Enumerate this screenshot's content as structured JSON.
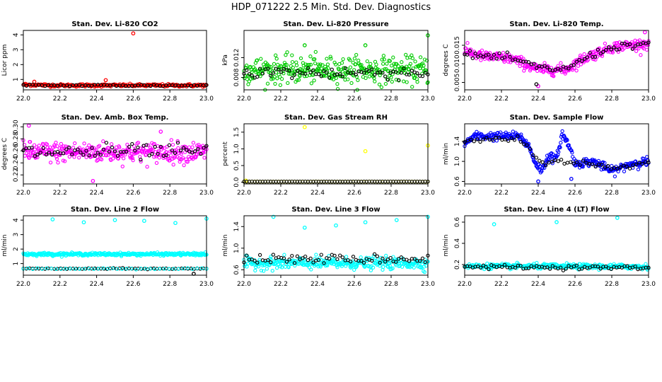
{
  "figure_title": "HDP_071222  2.5 Min. Std. Dev. Diagnostics",
  "colors": {
    "red": "#ff0000",
    "green": "#00cc00",
    "magenta": "#ff00ff",
    "yellow": "#ffff00",
    "blue": "#0000ff",
    "cyan": "#00ffff",
    "black": "#000000"
  },
  "chart_data": [
    {
      "id": "co2",
      "type": "scatter",
      "title": "Stan. Dev. Li-820 CO2",
      "ylabel": "Licor ppm",
      "xlim": [
        22.0,
        23.0
      ],
      "ylim": [
        0.3,
        4.3
      ],
      "xticks": [
        "22.0",
        "22.2",
        "22.4",
        "22.6",
        "22.8",
        "23.0"
      ],
      "yticks": [
        {
          "v": 1,
          "label": "1"
        },
        {
          "v": 2,
          "label": "2"
        },
        {
          "v": 3,
          "label": "3"
        },
        {
          "v": 4,
          "label": "4"
        }
      ],
      "series": [
        {
          "name": "main",
          "color": "#ff0000",
          "n": 250,
          "segments": [
            [
              22.0,
              0.65
            ],
            [
              0.2,
              0.6
            ],
            [
              0.6,
              0.6
            ],
            [
              1.0,
              0.6
            ]
          ],
          "noise": 0.08,
          "outliers": [
            [
              22.6,
              4.1
            ],
            [
              22.45,
              0.95
            ],
            [
              22.06,
              0.85
            ]
          ]
        },
        {
          "name": "ref",
          "color": "#000000",
          "n": 60,
          "segments": [
            [
              22.0,
              0.6
            ],
            [
              1.0,
              0.6
            ]
          ],
          "noise": 0.06,
          "outliers": []
        }
      ]
    },
    {
      "id": "pressure",
      "type": "scatter",
      "title": "Stan. Dev. Li-820 Pressure",
      "ylabel": "kPa",
      "xlim": [
        22.0,
        23.0
      ],
      "ylim": [
        0.0055,
        0.0175
      ],
      "xticks": [
        "22.0",
        "22.2",
        "22.4",
        "22.6",
        "22.8",
        "23.0"
      ],
      "yticks": [
        {
          "v": 0.008,
          "label": "0.008"
        },
        {
          "v": 0.012,
          "label": "0.012"
        }
      ],
      "series": [
        {
          "name": "main",
          "color": "#00cc00",
          "n": 350,
          "segments": [
            [
              22.0,
              0.0095
            ],
            [
              0.5,
              0.0095
            ],
            [
              1.0,
              0.0095
            ]
          ],
          "noise": 0.0022,
          "outliers": [
            [
              22.33,
              0.0145
            ],
            [
              22.66,
              0.0145
            ],
            [
              23.0,
              0.0165
            ]
          ]
        },
        {
          "name": "ref",
          "color": "#000000",
          "n": 70,
          "segments": [
            [
              22.0,
              0.009
            ],
            [
              1.0,
              0.009
            ]
          ],
          "noise": 0.0012,
          "outliers": []
        }
      ]
    },
    {
      "id": "temp",
      "type": "scatter",
      "title": "Stan. Dev. Li-820 Temp.",
      "ylabel": "degrees C",
      "xlim": [
        22.0,
        23.0
      ],
      "ylim": [
        0.003,
        0.019
      ],
      "xticks": [
        "22.0",
        "22.2",
        "22.4",
        "22.6",
        "22.8",
        "23.0"
      ],
      "yticks": [
        {
          "v": 0.005,
          "label": "0.005"
        },
        {
          "v": 0.01,
          "label": "0.010"
        },
        {
          "v": 0.015,
          "label": "0.015"
        }
      ],
      "series": [
        {
          "name": "main",
          "color": "#ff00ff",
          "n": 330,
          "segments": [
            [
              22.0,
              0.0135
            ],
            [
              0.1,
              0.012
            ],
            [
              0.25,
              0.0115
            ],
            [
              0.4,
              0.0085
            ],
            [
              0.55,
              0.0085
            ],
            [
              0.65,
              0.0115
            ],
            [
              0.8,
              0.0145
            ],
            [
              1.0,
              0.0155
            ]
          ],
          "noise": 0.0012,
          "outliers": [
            [
              22.98,
              0.0185
            ],
            [
              22.4,
              0.004
            ]
          ]
        },
        {
          "name": "ref",
          "color": "#000000",
          "n": 70,
          "segments": [
            [
              22.0,
              0.0125
            ],
            [
              0.25,
              0.0115
            ],
            [
              0.4,
              0.009
            ],
            [
              0.55,
              0.0085
            ],
            [
              0.65,
              0.0115
            ],
            [
              0.8,
              0.0145
            ],
            [
              1.0,
              0.0155
            ]
          ],
          "noise": 0.0008,
          "outliers": [
            [
              22.39,
              0.0045
            ]
          ]
        }
      ]
    },
    {
      "id": "ambbox",
      "type": "scatter",
      "title": "Stan. Dev. Amb. Box Temp.",
      "ylabel": "degrees C",
      "xlim": [
        22.0,
        23.0
      ],
      "ylim": [
        0.205,
        0.305
      ],
      "xticks": [
        "22.0",
        "22.2",
        "22.4",
        "22.6",
        "22.8",
        "23.0"
      ],
      "yticks": [
        {
          "v": 0.22,
          "label": "0.22"
        },
        {
          "v": 0.24,
          "label": "0.24"
        },
        {
          "v": 0.26,
          "label": "0.26"
        },
        {
          "v": 0.28,
          "label": "0.28"
        },
        {
          "v": 0.3,
          "label": "0.30"
        }
      ],
      "series": [
        {
          "name": "main",
          "color": "#ff00ff",
          "n": 350,
          "segments": [
            [
              22.0,
              0.258
            ],
            [
              1.0,
              0.258
            ]
          ],
          "noise": 0.014,
          "outliers": [
            [
              22.03,
              0.302
            ],
            [
              22.38,
              0.21
            ],
            [
              22.75,
              0.292
            ]
          ]
        },
        {
          "name": "ref",
          "color": "#000000",
          "n": 65,
          "segments": [
            [
              22.0,
              0.258
            ],
            [
              1.0,
              0.258
            ]
          ],
          "noise": 0.011,
          "outliers": []
        }
      ]
    },
    {
      "id": "rh",
      "type": "scatter",
      "title": "Stan. Dev. Gas Stream RH",
      "ylabel": "percent",
      "xlim": [
        22.0,
        23.0
      ],
      "ylim": [
        -0.05,
        1.75
      ],
      "xticks": [
        "22.0",
        "22.2",
        "22.4",
        "22.6",
        "22.8",
        "23.0"
      ],
      "yticks": [
        {
          "v": 0.0,
          "label": "0.0"
        },
        {
          "v": 0.5,
          "label": "0.5"
        },
        {
          "v": 1.0,
          "label": "1.0"
        },
        {
          "v": 1.5,
          "label": "1.5"
        }
      ],
      "series": [
        {
          "name": "main",
          "color": "#ffff00",
          "n": 70,
          "segments": [
            [
              22.0,
              0.02
            ],
            [
              1.0,
              0.02
            ]
          ],
          "noise": 0.003,
          "outliers": [
            [
              22.33,
              1.65
            ],
            [
              22.66,
              0.93
            ],
            [
              23.0,
              1.1
            ],
            [
              22.01,
              0.05
            ]
          ]
        },
        {
          "name": "ref",
          "color": "#000000",
          "n": 70,
          "segments": [
            [
              22.0,
              0.02
            ],
            [
              1.0,
              0.02
            ]
          ],
          "noise": 0.002,
          "outliers": []
        }
      ]
    },
    {
      "id": "sampleflow",
      "type": "scatter",
      "title": "Stan. Dev. Sample Flow",
      "ylabel": "ml/min",
      "xlim": [
        22.0,
        23.0
      ],
      "ylim": [
        0.55,
        1.75
      ],
      "xticks": [
        "22.0",
        "22.2",
        "22.4",
        "22.6",
        "22.8",
        "23.0"
      ],
      "yticks": [
        {
          "v": 0.6,
          "label": "0.6"
        },
        {
          "v": 1.0,
          "label": "1.0"
        },
        {
          "v": 1.4,
          "label": "1.4"
        }
      ],
      "series": [
        {
          "name": "main",
          "color": "#0000ff",
          "n": 340,
          "segments": [
            [
              22.0,
              1.35
            ],
            [
              0.05,
              1.5
            ],
            [
              0.3,
              1.5
            ],
            [
              0.35,
              1.3
            ],
            [
              0.38,
              1.0
            ],
            [
              0.42,
              0.8
            ],
            [
              0.45,
              1.1
            ],
            [
              0.5,
              1.05
            ],
            [
              0.53,
              1.55
            ],
            [
              0.57,
              1.3
            ],
            [
              0.6,
              0.95
            ],
            [
              0.7,
              1.0
            ],
            [
              0.8,
              0.8
            ],
            [
              0.9,
              0.95
            ],
            [
              1.0,
              1.0
            ]
          ],
          "noise": 0.07,
          "outliers": [
            [
              22.4,
              0.6
            ],
            [
              22.58,
              0.65
            ]
          ]
        },
        {
          "name": "ref",
          "color": "#000000",
          "n": 60,
          "segments": [
            [
              22.0,
              1.4
            ],
            [
              0.3,
              1.45
            ],
            [
              0.4,
              1.0
            ],
            [
              0.6,
              1.0
            ],
            [
              0.8,
              0.85
            ],
            [
              1.0,
              1.0
            ]
          ],
          "noise": 0.05,
          "outliers": []
        }
      ]
    },
    {
      "id": "line2",
      "type": "scatter",
      "title": "Stan. Dev. Line 2 Flow",
      "ylabel": "ml/min",
      "xlim": [
        22.0,
        23.0
      ],
      "ylim": [
        0.2,
        4.3
      ],
      "xticks": [
        "22.0",
        "22.2",
        "22.4",
        "22.6",
        "22.8",
        "23.0"
      ],
      "yticks": [
        {
          "v": 1,
          "label": "1"
        },
        {
          "v": 2,
          "label": "2"
        },
        {
          "v": 3,
          "label": "3"
        },
        {
          "v": 4,
          "label": "4"
        }
      ],
      "series": [
        {
          "name": "main",
          "color": "#00ffff",
          "n": 330,
          "segments": [
            [
              22.0,
              1.65
            ],
            [
              1.0,
              1.65
            ]
          ],
          "noise": 0.08,
          "outliers": [
            [
              22.16,
              4.05
            ],
            [
              22.33,
              3.85
            ],
            [
              22.5,
              4.0
            ],
            [
              22.66,
              3.95
            ],
            [
              22.83,
              3.8
            ],
            [
              23.0,
              4.1
            ]
          ]
        },
        {
          "name": "ref",
          "color": "#000000",
          "n": 60,
          "segments": [
            [
              22.0,
              0.65
            ],
            [
              1.0,
              0.65
            ]
          ],
          "noise": 0.03,
          "outliers": [
            [
              22.93,
              0.3
            ]
          ]
        },
        {
          "name": "cyanlow",
          "color": "#00ffff",
          "n": 40,
          "segments": [
            [
              22.0,
              0.65
            ],
            [
              1.0,
              0.65
            ]
          ],
          "noise": 0.04,
          "outliers": []
        }
      ]
    },
    {
      "id": "line3",
      "type": "scatter",
      "title": "Stan. Dev. Line 3 Flow",
      "ylabel": "ml/min",
      "xlim": [
        22.0,
        23.0
      ],
      "ylim": [
        0.5,
        1.6
      ],
      "xticks": [
        "22.0",
        "22.2",
        "22.4",
        "22.6",
        "22.8",
        "23.0"
      ],
      "yticks": [
        {
          "v": 0.6,
          "label": "0.6"
        },
        {
          "v": 1.0,
          "label": "1.0"
        },
        {
          "v": 1.4,
          "label": "1.4"
        }
      ],
      "series": [
        {
          "name": "main",
          "color": "#00ffff",
          "n": 330,
          "segments": [
            [
              22.0,
              0.72
            ],
            [
              1.0,
              0.72
            ]
          ],
          "noise": 0.09,
          "outliers": [
            [
              22.16,
              1.58
            ],
            [
              22.33,
              1.38
            ],
            [
              22.5,
              1.42
            ],
            [
              22.66,
              1.48
            ],
            [
              22.83,
              1.52
            ],
            [
              23.0,
              1.58
            ]
          ]
        },
        {
          "name": "ref",
          "color": "#000000",
          "n": 70,
          "segments": [
            [
              22.0,
              0.8
            ],
            [
              1.0,
              0.8
            ]
          ],
          "noise": 0.07,
          "outliers": []
        }
      ]
    },
    {
      "id": "line4",
      "type": "scatter",
      "title": "Stan. Dev. Line 4 (LT) Flow",
      "ylabel": "ml/min",
      "xlim": [
        22.0,
        23.0
      ],
      "ylim": [
        0.1,
        0.66
      ],
      "xticks": [
        "22.0",
        "22.2",
        "22.4",
        "22.6",
        "22.8",
        "23.0"
      ],
      "yticks": [
        {
          "v": 0.2,
          "label": "0.2"
        },
        {
          "v": 0.4,
          "label": "0.4"
        },
        {
          "v": 0.6,
          "label": "0.6"
        }
      ],
      "series": [
        {
          "name": "main",
          "color": "#00ffff",
          "n": 320,
          "segments": [
            [
              22.0,
              0.185
            ],
            [
              1.0,
              0.18
            ]
          ],
          "noise": 0.02,
          "outliers": [
            [
              22.16,
              0.58
            ],
            [
              22.5,
              0.6
            ],
            [
              22.83,
              0.64
            ]
          ]
        },
        {
          "name": "ref",
          "color": "#000000",
          "n": 70,
          "segments": [
            [
              22.0,
              0.18
            ],
            [
              1.0,
              0.17
            ]
          ],
          "noise": 0.015,
          "outliers": []
        }
      ]
    }
  ]
}
